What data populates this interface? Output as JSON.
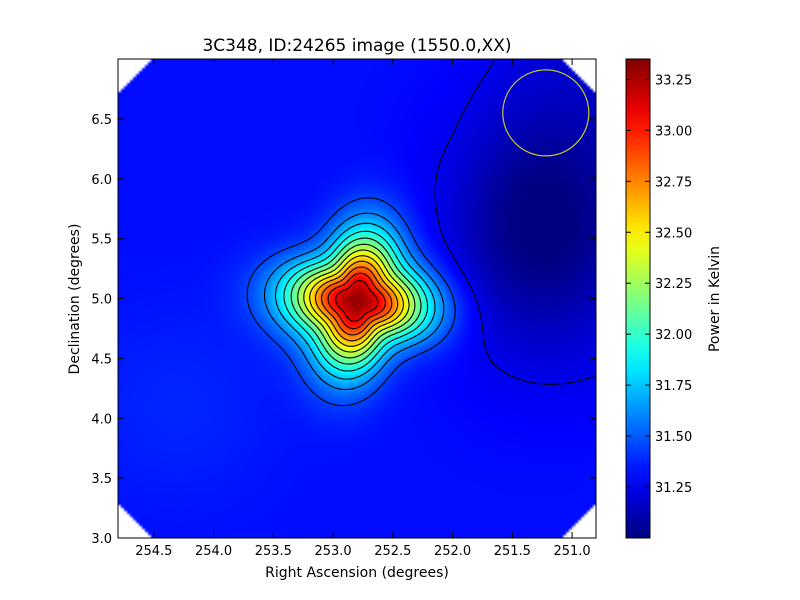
{
  "chart_data": {
    "type": "heatmap",
    "title": "3C348, ID:24265 image (1550.0,XX)",
    "xlabel": "Right Ascension (degrees)",
    "ylabel": "Declination (degrees)",
    "xlim": [
      254.8,
      250.8
    ],
    "ylim": [
      3.0,
      7.0
    ],
    "x_inverted": true,
    "x_ticks": [
      254.5,
      254.0,
      253.5,
      253.0,
      252.5,
      252.0,
      251.5,
      251.0
    ],
    "x_tick_labels": [
      "254.5",
      "254.0",
      "253.5",
      "253.0",
      "252.5",
      "252.0",
      "251.5",
      "251.0"
    ],
    "y_ticks": [
      3.0,
      3.5,
      4.0,
      4.5,
      5.0,
      5.5,
      6.0,
      6.5
    ],
    "y_tick_labels": [
      "3.0",
      "3.5",
      "4.0",
      "4.5",
      "5.0",
      "5.5",
      "6.0",
      "6.5"
    ],
    "colormap": "jet",
    "colorbar": {
      "label": "Power in Kelvin",
      "min": 31.0,
      "max": 33.35,
      "ticks": [
        31.25,
        31.5,
        31.75,
        32.0,
        32.25,
        32.5,
        32.75,
        33.0,
        33.25
      ],
      "tick_labels": [
        "31.25",
        "31.50",
        "31.75",
        "32.00",
        "32.25",
        "32.50",
        "32.75",
        "33.00",
        "33.25"
      ]
    },
    "peak": {
      "ra": 252.8,
      "dec": 4.98,
      "value": 33.3
    },
    "beam_circle": {
      "ra": 251.22,
      "dec": 6.55,
      "radius_deg": 0.36,
      "color": "#c8c832"
    },
    "contour_line_color": "#000000",
    "grid": false
  }
}
